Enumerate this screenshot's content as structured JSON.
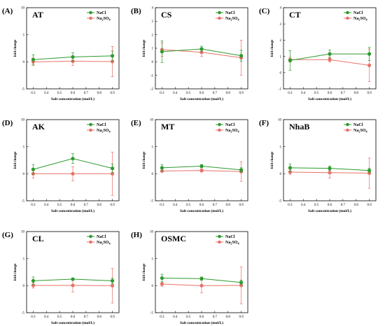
{
  "series_styles": [
    {
      "name": "NaCl",
      "color": "#2e9a2e"
    },
    {
      "name": "Na2SO4",
      "name_base": "Na",
      "name_sub1": "2",
      "name_mid": "SO",
      "name_sub2": "4",
      "color": "#e8726a"
    }
  ],
  "x_tick_labels": [
    "0.3",
    "0.4",
    "0.5",
    "0.6",
    "0.7",
    "0.8",
    "0.9"
  ],
  "chart_data": [
    {
      "type": "line",
      "panel": "(A)",
      "gene": "AT",
      "xlabel": "Salt concentration (mol/L)",
      "ylabel": "fold change",
      "x": [
        0.3,
        0.6,
        0.9
      ],
      "xlim": [
        0.25,
        0.95
      ],
      "ylim": [
        -5,
        10
      ],
      "yticks": [
        -5,
        0,
        5,
        10
      ],
      "series": [
        {
          "name": "NaCl",
          "values": [
            0.4,
            0.9,
            1.1
          ],
          "errors": [
            0.9,
            0.8,
            0.9
          ]
        },
        {
          "name": "Na2SO4",
          "values": [
            0.0,
            0.1,
            0.05
          ],
          "errors": [
            0.7,
            0.8,
            2.8
          ]
        }
      ]
    },
    {
      "type": "line",
      "panel": "(B)",
      "gene": "CS",
      "xlabel": "Salt concentration (mol/L)",
      "ylabel": "fold change",
      "x": [
        0.3,
        0.6,
        0.9
      ],
      "xlim": [
        0.25,
        0.95
      ],
      "ylim": [
        -2,
        4
      ],
      "yticks": [
        -2,
        -1,
        0,
        1,
        2,
        3,
        4
      ],
      "series": [
        {
          "name": "NaCl",
          "values": [
            0.75,
            0.95,
            0.45
          ],
          "errors": [
            0.8,
            0.2,
            0.4
          ]
        },
        {
          "name": "Na2SO4",
          "values": [
            0.9,
            0.7,
            0.3
          ],
          "errors": [
            0.5,
            0.3,
            1.3
          ]
        }
      ]
    },
    {
      "type": "line",
      "panel": "(C)",
      "gene": "CT",
      "xlabel": "Salt concentration (mol/L)",
      "ylabel": "fold change",
      "x": [
        0.3,
        0.6,
        0.9
      ],
      "xlim": [
        0.25,
        0.95
      ],
      "ylim": [
        -1,
        4
      ],
      "yticks": [
        -1,
        0,
        1,
        2,
        3,
        4
      ],
      "series": [
        {
          "name": "NaCl",
          "values": [
            0.75,
            1.15,
            1.15
          ],
          "errors": [
            0.6,
            0.25,
            0.4
          ]
        },
        {
          "name": "Na2SO4",
          "values": [
            0.8,
            0.8,
            0.45
          ],
          "errors": [
            0.15,
            0.15,
            1.0
          ]
        }
      ]
    },
    {
      "type": "line",
      "panel": "(D)",
      "gene": "AK",
      "xlabel": "Salt concentration (mol/L)",
      "ylabel": "fold change",
      "x": [
        0.3,
        0.6,
        0.9
      ],
      "xlim": [
        0.25,
        0.95
      ],
      "ylim": [
        -5,
        10
      ],
      "yticks": [
        -5,
        0,
        5,
        10
      ],
      "series": [
        {
          "name": "NaCl",
          "values": [
            0.8,
            2.8,
            1.0
          ],
          "errors": [
            0.9,
            0.9,
            0.8
          ]
        },
        {
          "name": "Na2SO4",
          "values": [
            0.0,
            0.0,
            0.0
          ],
          "errors": [
            0.8,
            1.3,
            4.0
          ]
        }
      ]
    },
    {
      "type": "line",
      "panel": "(E)",
      "gene": "MT",
      "xlabel": "Salt concentration (mol/L)",
      "ylabel": "fold change",
      "x": [
        0.3,
        0.6,
        0.9
      ],
      "xlim": [
        0.25,
        0.95
      ],
      "ylim": [
        -5,
        10
      ],
      "yticks": [
        -5,
        0,
        5,
        10
      ],
      "series": [
        {
          "name": "NaCl",
          "values": [
            1.1,
            1.4,
            0.7
          ],
          "errors": [
            0.6,
            0.3,
            0.4
          ]
        },
        {
          "name": "Na2SO4",
          "values": [
            0.5,
            0.6,
            0.4
          ],
          "errors": [
            0.2,
            0.3,
            1.8
          ]
        }
      ]
    },
    {
      "type": "line",
      "panel": "(F)",
      "gene": "NhaB",
      "xlabel": "Salt concentration (mol/L)",
      "ylabel": "fold change",
      "x": [
        0.3,
        0.6,
        0.9
      ],
      "xlim": [
        0.25,
        0.95
      ],
      "ylim": [
        -5,
        10
      ],
      "yticks": [
        -5,
        0,
        5,
        10
      ],
      "series": [
        {
          "name": "NaCl",
          "values": [
            1.1,
            1.0,
            0.6
          ],
          "errors": [
            0.7,
            0.4,
            0.4
          ]
        },
        {
          "name": "Na2SO4",
          "values": [
            0.3,
            0.2,
            0.1
          ],
          "errors": [
            0.4,
            1.0,
            2.8
          ]
        }
      ]
    },
    {
      "type": "line",
      "panel": "(G)",
      "gene": "CL",
      "xlabel": "Salt concentration (mol/L)",
      "ylabel": "fold change",
      "x": [
        0.3,
        0.6,
        0.9
      ],
      "xlim": [
        0.25,
        0.95
      ],
      "ylim": [
        -5,
        10
      ],
      "yticks": [
        -5,
        0,
        5,
        10
      ],
      "series": [
        {
          "name": "NaCl",
          "values": [
            0.9,
            1.2,
            0.9
          ],
          "errors": [
            0.7,
            0.2,
            0.5
          ]
        },
        {
          "name": "Na2SO4",
          "values": [
            0.05,
            0.05,
            0.0
          ],
          "errors": [
            0.5,
            1.2,
            3.2
          ]
        }
      ]
    },
    {
      "type": "line",
      "panel": "(H)",
      "gene": "OSMC",
      "xlabel": "Salt concentration (mol/L)",
      "ylabel": "fold change",
      "x": [
        0.3,
        0.6,
        0.9
      ],
      "xlim": [
        0.25,
        0.95
      ],
      "ylim": [
        -5,
        10
      ],
      "yticks": [
        -5,
        0,
        5,
        10
      ],
      "series": [
        {
          "name": "NaCl",
          "values": [
            1.4,
            1.3,
            0.6
          ],
          "errors": [
            0.7,
            0.3,
            0.4
          ]
        },
        {
          "name": "Na2SO4",
          "values": [
            0.3,
            0.0,
            0.05
          ],
          "errors": [
            0.4,
            1.3,
            3.4
          ]
        }
      ]
    }
  ]
}
